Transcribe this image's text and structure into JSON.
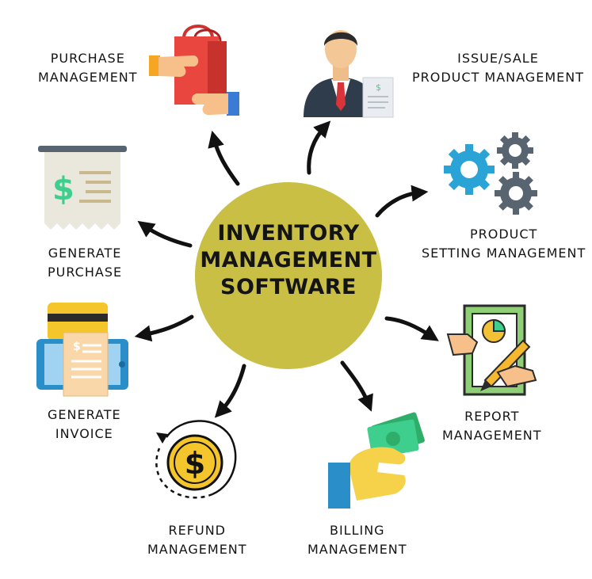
{
  "center": {
    "line1": "INVENTORY",
    "line2": "MANAGEMENT",
    "line3": "SOFTWARE",
    "color": "#c9bf45"
  },
  "modules": [
    {
      "id": "purchase-management",
      "line1": "PURCHASE",
      "line2": "MANAGEMENT",
      "icon": "shopping-bag-handshake-icon"
    },
    {
      "id": "issue-sale",
      "line1": "ISSUE/SALE",
      "line2": "PRODUCT MANAGEMENT",
      "icon": "businessman-icon"
    },
    {
      "id": "product-setting",
      "line1": "PRODUCT",
      "line2": "SETTING MANAGEMENT",
      "icon": "gears-icon"
    },
    {
      "id": "report-management",
      "line1": "REPORT",
      "line2": "MANAGEMENT",
      "icon": "report-chart-icon"
    },
    {
      "id": "billing-management",
      "line1": "BILLING",
      "line2": "MANAGEMENT",
      "icon": "hand-money-icon"
    },
    {
      "id": "refund-management",
      "line1": "REFUND",
      "line2": "MANAGEMENT",
      "icon": "dollar-coin-icon"
    },
    {
      "id": "generate-invoice",
      "line1": "GENERATE",
      "line2": "INVOICE",
      "icon": "invoice-tablet-icon"
    },
    {
      "id": "generate-purchase",
      "line1": "GENERATE",
      "line2": "PURCHASE",
      "icon": "receipt-icon"
    }
  ],
  "colors": {
    "arrow": "#111111",
    "bag_red": "#e8463f",
    "hand_skin": "#f7c08a",
    "suit": "#2f3c4c",
    "gear_blue": "#2aa3d6",
    "gear_gray": "#586470",
    "money_green": "#3ecf8e",
    "coin_yellow": "#f5c52c"
  }
}
